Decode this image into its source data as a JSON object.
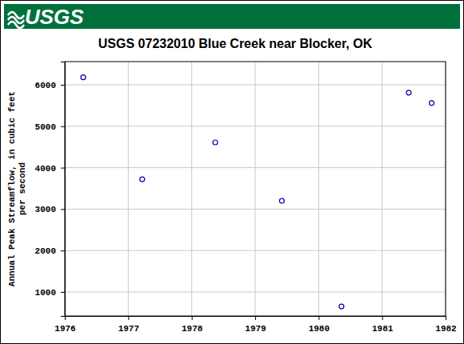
{
  "header": {
    "logo": "USGS"
  },
  "chart_data": {
    "type": "scatter",
    "title": "USGS 07232010 Blue Creek near Blocker, OK",
    "ylabel": "Annual Peak Streamflow, in cubic feet per second",
    "x": [
      1976.29,
      1977.22,
      1978.37,
      1979.42,
      1980.36,
      1981.42,
      1981.78
    ],
    "values": [
      6180,
      3720,
      4610,
      3200,
      650,
      5810,
      5560
    ],
    "color": "#0000b0",
    "marker": "circle",
    "xlim": [
      1976,
      1982
    ],
    "xticks": [
      1976,
      1977,
      1978,
      1979,
      1980,
      1981,
      1982
    ],
    "ylim": [
      420,
      6560
    ],
    "yticks": [
      1000,
      2000,
      3000,
      4000,
      5000,
      6000
    ],
    "grid": true
  }
}
